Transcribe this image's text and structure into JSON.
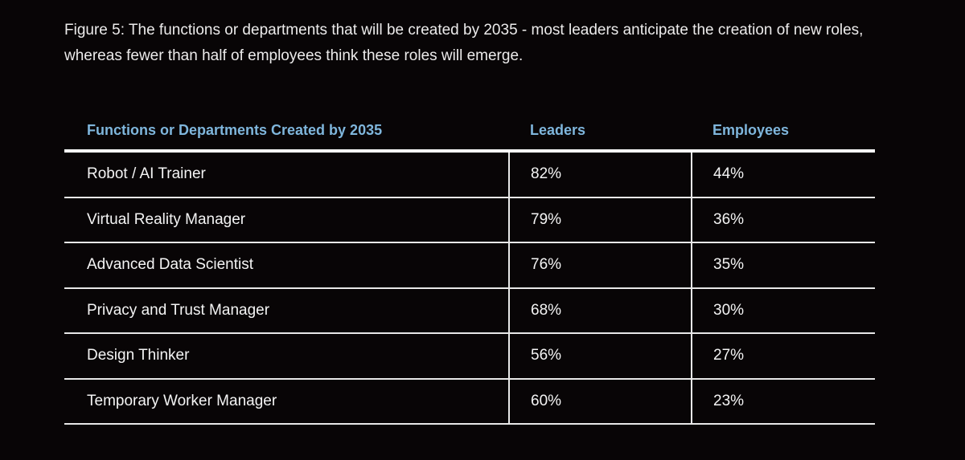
{
  "caption": "Figure 5: The functions or departments that will be created by 2035 - most leaders anticipate the creation of new roles, whereas fewer than half of employees think these roles will emerge.",
  "colors": {
    "background": "#080506",
    "header_text": "#7fb6dc",
    "body_text": "#f4f4f4",
    "rules": "#e8e8e8"
  },
  "chart_data": {
    "type": "table",
    "columns": [
      "Functions or Departments Created by 2035",
      "Leaders",
      "Employees"
    ],
    "rows": [
      [
        "Robot / AI Trainer",
        "82%",
        "44%"
      ],
      [
        "Virtual Reality Manager",
        "79%",
        "36%"
      ],
      [
        "Advanced Data Scientist",
        "76%",
        "35%"
      ],
      [
        "Privacy and Trust Manager",
        "68%",
        "30%"
      ],
      [
        "Design Thinker",
        "56%",
        "27%"
      ],
      [
        "Temporary Worker Manager",
        "60%",
        "23%"
      ]
    ]
  }
}
